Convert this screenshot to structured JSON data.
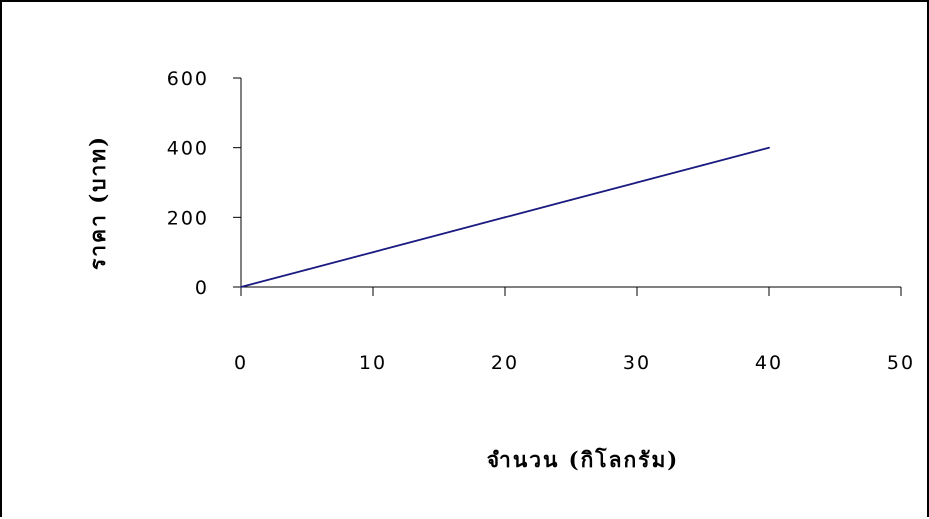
{
  "chart_data": {
    "type": "line",
    "title": "",
    "xlabel": "จำนวน (กิโลกรัม)",
    "ylabel": "ราคา (บาท)",
    "x": [
      0,
      5,
      10,
      15,
      20,
      25,
      30,
      35,
      40
    ],
    "series": [
      {
        "values": [
          0,
          50,
          100,
          150,
          200,
          250,
          300,
          350,
          400
        ]
      }
    ],
    "xlim": [
      0,
      50
    ],
    "ylim": [
      0,
      600
    ],
    "x_ticks": [
      "0",
      "10",
      "20",
      "30",
      "40",
      "50"
    ],
    "y_ticks": [
      "0",
      "200",
      "400",
      "600"
    ],
    "grid": false,
    "legend": "none",
    "line_color": "#1a1a80",
    "axis_color": "#000000"
  }
}
